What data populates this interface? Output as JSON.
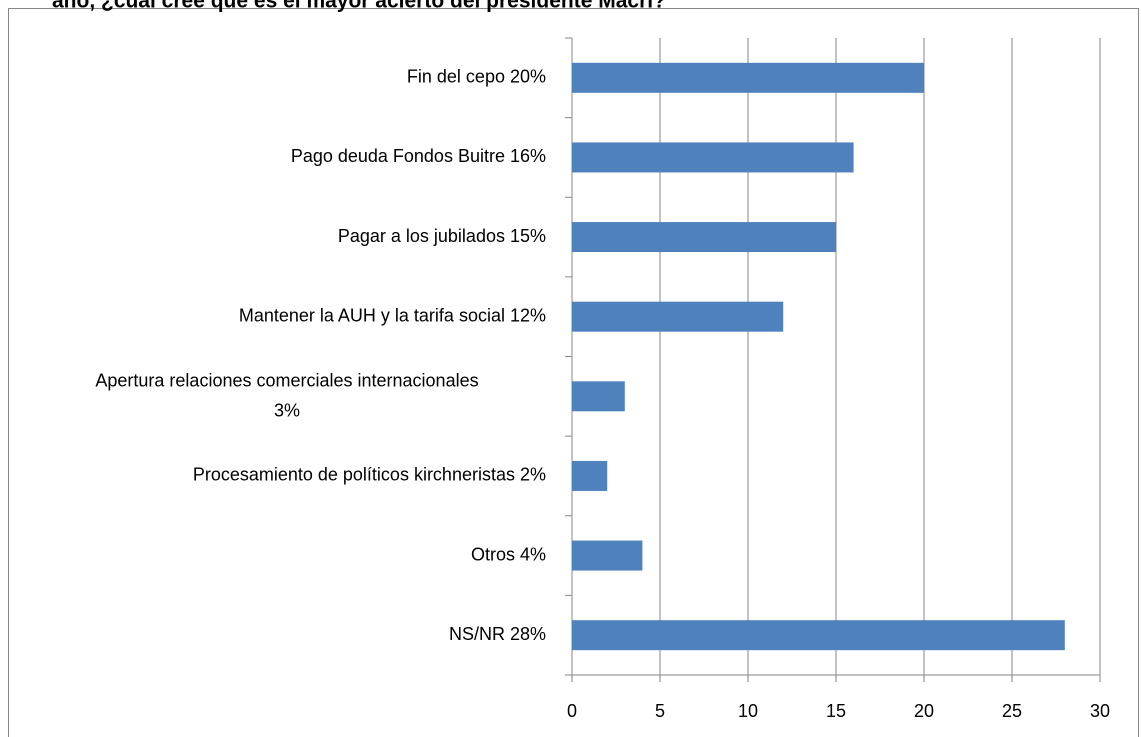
{
  "chart_data": {
    "type": "bar",
    "orientation": "horizontal",
    "title": "año, ¿cuál cree que es el mayor acierto del presidente Macri?",
    "categories": [
      "Fin del cepo  20%",
      "Pago deuda Fondos Buitre  16%",
      "Pagar a los jubilados  15%",
      "Mantener la AUH y la tarifa social  12%",
      "Apertura relaciones comerciales internacionales\n3%",
      "Procesamiento de políticos kirchneristas  2%",
      "Otros  4%",
      "NS/NR  28%"
    ],
    "values": [
      20,
      16,
      15,
      12,
      3,
      2,
      4,
      28
    ],
    "color": "#4f81bd",
    "xlim": [
      0,
      30
    ],
    "xticks": [
      0,
      5,
      10,
      15,
      20,
      25,
      30
    ],
    "grid": true
  }
}
